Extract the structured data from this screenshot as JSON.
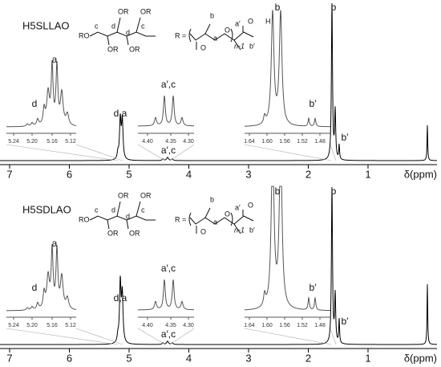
{
  "panels": [
    {
      "title": "H5SLLAO",
      "core_labels": [
        "RO",
        "c",
        "d",
        "OR",
        "d",
        "c",
        "OR",
        "OR",
        "OR"
      ],
      "r_group": [
        "R =",
        "b",
        "O",
        "a",
        "O",
        "a′",
        "O",
        "H",
        "n-1",
        "b′"
      ],
      "peak_labels": {
        "da": "d,a",
        "ac": "a′,c",
        "b": "b",
        "bp": "b′"
      },
      "axis": {
        "ticks": [
          7,
          6,
          5,
          4,
          3,
          2,
          1
        ],
        "label": "δ(ppm)"
      },
      "insets": [
        {
          "labels": [
            "a",
            "d"
          ],
          "ticks": [
            "5.24",
            "5.20",
            "5.16",
            "5.12"
          ]
        },
        {
          "labels": [
            "a′,c"
          ],
          "ticks": [
            "4.40",
            "4.35",
            "4.30"
          ]
        },
        {
          "labels": [
            "b",
            "b′"
          ],
          "ticks": [
            "1.64",
            "1.60",
            "1.56",
            "1.52",
            "1.48"
          ]
        }
      ]
    },
    {
      "title": "H5SDLAO",
      "core_labels": [
        "RO",
        "c",
        "d",
        "OR",
        "d",
        "c",
        "OR",
        "OR",
        "OR"
      ],
      "r_group": [
        "R =",
        "b",
        "O",
        "a",
        "O",
        "a′",
        "O",
        "",
        "n-1",
        "b′"
      ],
      "peak_labels": {
        "da": "d,a",
        "ac": "a′,c",
        "b": "b",
        "bp": "b′"
      },
      "axis": {
        "ticks": [
          7,
          6,
          5,
          4,
          3,
          2,
          1
        ],
        "label": "δ(ppm)"
      },
      "insets": [
        {
          "labels": [
            "a",
            "d"
          ],
          "ticks": [
            "5.24",
            "5.20",
            "5.16",
            "5.12"
          ]
        },
        {
          "labels": [
            "a′,c"
          ],
          "ticks": [
            "4.40",
            "4.35",
            "4.30"
          ]
        },
        {
          "labels": [
            "b",
            "b′"
          ],
          "ticks": [
            "1.64",
            "1.60",
            "1.56",
            "1.52",
            "1.48"
          ]
        }
      ]
    }
  ]
}
